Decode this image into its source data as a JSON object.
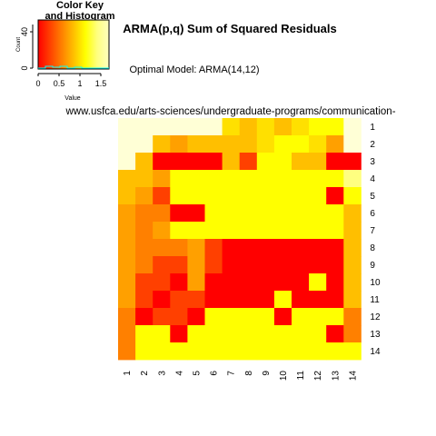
{
  "title": "ARMA(p,q) Sum of Squared Residuals",
  "subtitle": "Optimal Model: ARMA(14,12)",
  "source_url": "www.usfca.edu/arts-sciences/undergraduate-programs/communication-",
  "color_key": {
    "title_line1": "Color Key",
    "title_line2": "and Histogram",
    "ylabel": "Count",
    "xlabel": "Value",
    "y_ticks": [
      "0",
      "40"
    ],
    "x_ticks": [
      "0",
      "0.5",
      "1",
      "1.5"
    ],
    "gradient": [
      "#ff0000",
      "#ff4000",
      "#ff8000",
      "#ffbf00",
      "#ffff00",
      "#ffff80",
      "#ffffbf"
    ]
  },
  "colors": {
    "palette": [
      "#ff0000",
      "#ff4000",
      "#ff8000",
      "#ffa000",
      "#ffbf00",
      "#ffe000",
      "#ffff00",
      "#ffff80",
      "#ffffd6"
    ]
  },
  "chart_data": {
    "type": "heatmap",
    "x_labels": [
      "1",
      "2",
      "3",
      "4",
      "5",
      "6",
      "7",
      "8",
      "9",
      "10",
      "11",
      "12",
      "13",
      "14"
    ],
    "y_labels": [
      "1",
      "2",
      "3",
      "4",
      "5",
      "6",
      "7",
      "8",
      "9",
      "10",
      "11",
      "12",
      "13",
      "14"
    ],
    "value_range": [
      0,
      1.7
    ],
    "cells": [
      [
        8,
        8,
        8,
        8,
        8,
        8,
        5,
        4,
        5,
        4,
        5,
        6,
        6,
        8
      ],
      [
        8,
        8,
        4,
        3,
        4,
        4,
        4,
        4,
        5,
        6,
        6,
        5,
        3,
        8
      ],
      [
        8,
        4,
        0,
        0,
        0,
        0,
        4,
        1,
        6,
        6,
        4,
        4,
        0,
        0
      ],
      [
        4,
        4,
        3,
        6,
        6,
        6,
        6,
        6,
        6,
        6,
        6,
        6,
        6,
        7
      ],
      [
        4,
        3,
        1,
        6,
        6,
        6,
        6,
        6,
        6,
        6,
        6,
        6,
        0,
        6
      ],
      [
        3,
        2,
        2,
        0,
        0,
        6,
        6,
        6,
        6,
        6,
        6,
        6,
        6,
        4
      ],
      [
        3,
        2,
        3,
        6,
        6,
        6,
        6,
        6,
        6,
        6,
        6,
        6,
        6,
        4
      ],
      [
        3,
        2,
        2,
        2,
        3,
        1,
        0,
        0,
        0,
        0,
        0,
        0,
        0,
        4
      ],
      [
        3,
        2,
        1,
        1,
        3,
        1,
        0,
        0,
        0,
        0,
        0,
        0,
        0,
        4
      ],
      [
        3,
        1,
        1,
        0,
        3,
        0,
        0,
        0,
        0,
        0,
        0,
        6,
        0,
        4
      ],
      [
        3,
        1,
        0,
        1,
        1,
        0,
        0,
        0,
        0,
        6,
        0,
        0,
        0,
        4
      ],
      [
        2,
        0,
        1,
        1,
        0,
        6,
        6,
        6,
        6,
        0,
        6,
        6,
        6,
        2
      ],
      [
        2,
        6,
        6,
        0,
        6,
        6,
        6,
        6,
        6,
        6,
        6,
        6,
        0,
        2
      ],
      [
        2,
        6,
        6,
        6,
        6,
        6,
        6,
        6,
        6,
        6,
        6,
        6,
        6,
        6
      ]
    ]
  }
}
